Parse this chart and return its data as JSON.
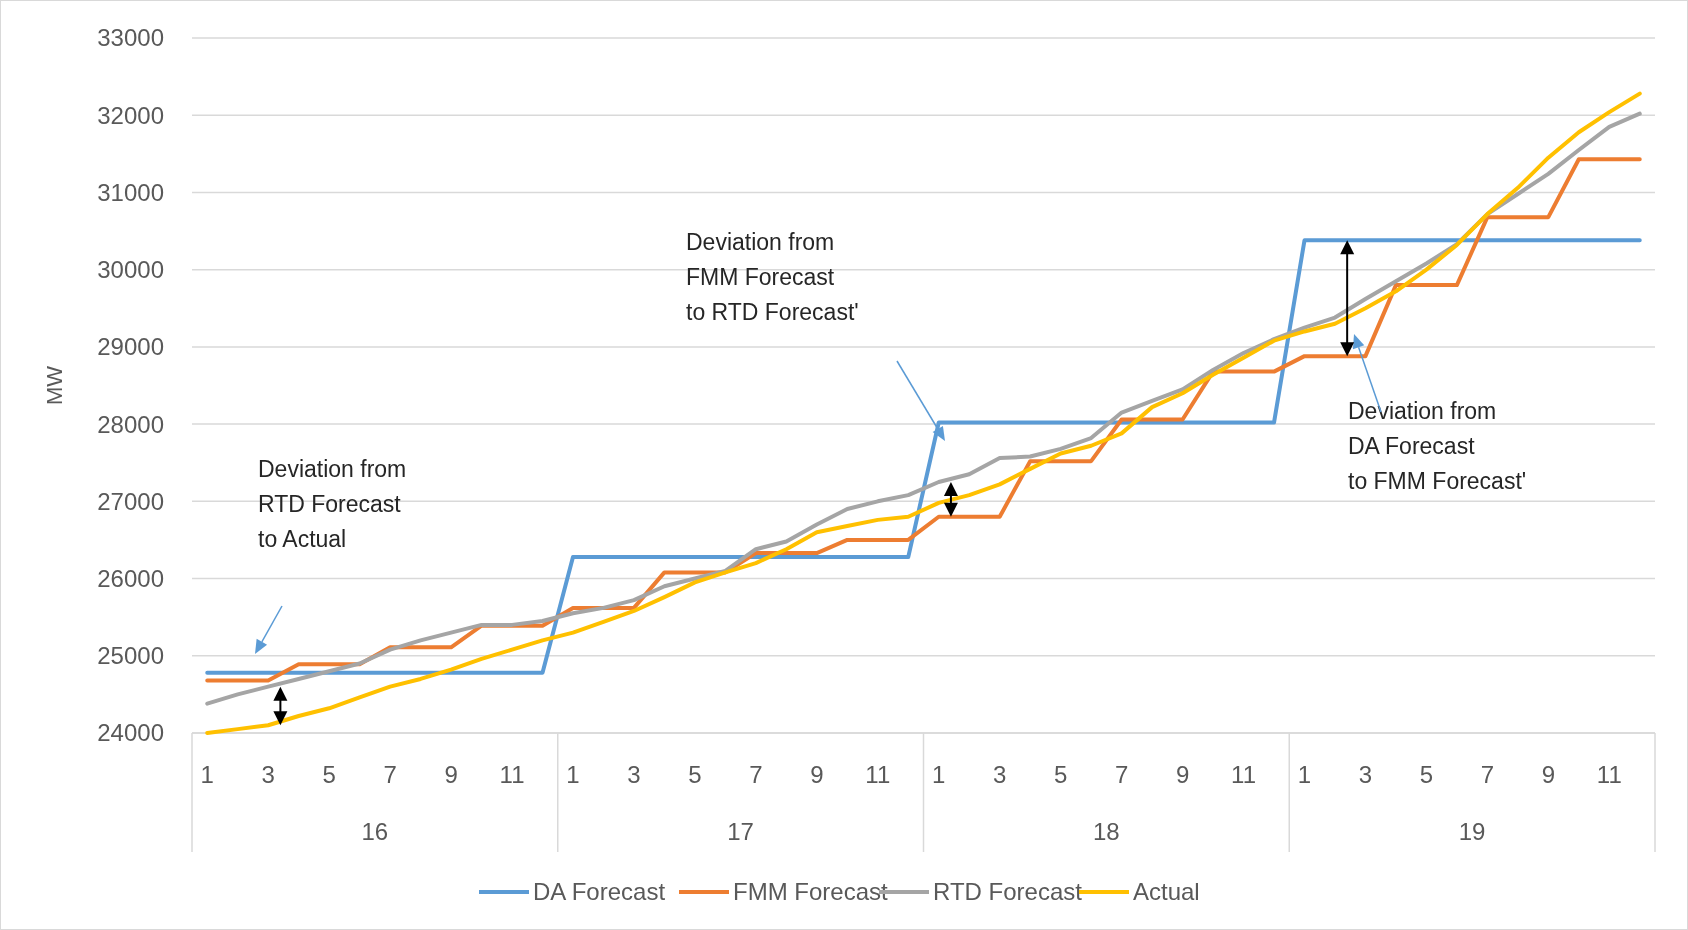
{
  "chart_data": {
    "type": "line",
    "ylabel": "MW",
    "categories": [
      "1",
      null,
      "3",
      null,
      "5",
      null,
      "7",
      null,
      "9",
      null,
      "11",
      null,
      "1",
      null,
      "3",
      null,
      "5",
      null,
      "7",
      null,
      "9",
      null,
      "11",
      null,
      "1",
      null,
      "3",
      null,
      "5",
      null,
      "7",
      null,
      "9",
      null,
      "11",
      null,
      "1",
      null,
      "3",
      null,
      "5",
      null,
      "7",
      null,
      "9",
      null,
      "11",
      null
    ],
    "annotations": [
      "Deviation from\nRTD Forecast\nto Actual",
      "Deviation from\nFMM Forecast\nto RTD Forecast'",
      "Deviation from\nDA Forecast\nto FMM Forecast'",
      "16",
      "17",
      "18",
      "19"
    ],
    "series": [
      {
        "name": "DA Forecast",
        "color": "#5b9bd5",
        "values": [
          24780,
          24780,
          24780,
          24780,
          24780,
          24780,
          24780,
          24780,
          24780,
          24780,
          24780,
          24780,
          26280,
          26280,
          26280,
          26280,
          26280,
          26280,
          26280,
          26280,
          26280,
          26280,
          26280,
          26280,
          28020,
          28020,
          28020,
          28020,
          28020,
          28020,
          28020,
          28020,
          28020,
          28020,
          28020,
          28020,
          30380,
          30380,
          30380,
          30380,
          30380,
          30380,
          30380,
          30380,
          30380,
          30380,
          30380,
          30380
        ]
      },
      {
        "name": "FMM Forecast",
        "color": "#ed7d31",
        "values": [
          24680,
          24680,
          24680,
          24890,
          24890,
          24890,
          25110,
          25110,
          25110,
          25390,
          25390,
          25390,
          25620,
          25620,
          25620,
          26080,
          26080,
          26080,
          26330,
          26330,
          26330,
          26500,
          26500,
          26500,
          26800,
          26800,
          26800,
          27520,
          27520,
          27520,
          28060,
          28060,
          28060,
          28680,
          28680,
          28680,
          28880,
          28880,
          28880,
          29800,
          29800,
          29800,
          30680,
          30680,
          30680,
          31430,
          31430,
          31430
        ]
      },
      {
        "name": "RTD Forecast",
        "color": "#a5a5a5",
        "values": [
          24380,
          24500,
          24600,
          24700,
          24800,
          24900,
          25080,
          25200,
          25300,
          25400,
          25400,
          25450,
          25550,
          25620,
          25720,
          25900,
          26000,
          26100,
          26380,
          26480,
          26700,
          26900,
          27000,
          27080,
          27250,
          27350,
          27560,
          27580,
          27680,
          27820,
          28150,
          28300,
          28450,
          28700,
          28920,
          29100,
          29250,
          29380,
          29620,
          29850,
          30080,
          30330,
          30720,
          30980,
          31240,
          31550,
          31850,
          32020
        ]
      },
      {
        "name": "Actual",
        "color": "#ffc000",
        "values": [
          24000,
          24050,
          24100,
          24220,
          24320,
          24460,
          24600,
          24700,
          24820,
          24960,
          25080,
          25200,
          25300,
          25440,
          25580,
          25760,
          25950,
          26080,
          26200,
          26380,
          26600,
          26680,
          26760,
          26800,
          26980,
          27080,
          27220,
          27420,
          27620,
          27720,
          27880,
          28220,
          28400,
          28640,
          28860,
          29080,
          29200,
          29300,
          29500,
          29720,
          30000,
          30320,
          30720,
          31060,
          31450,
          31780,
          32040,
          32280
        ]
      }
    ],
    "ylim": [
      24000,
      33000
    ],
    "yticks": [
      24000,
      25000,
      26000,
      27000,
      28000,
      29000,
      30000,
      31000,
      32000,
      33000
    ],
    "grid": "y",
    "legend": "bottom",
    "line_style": "solid",
    "marker": "none"
  }
}
